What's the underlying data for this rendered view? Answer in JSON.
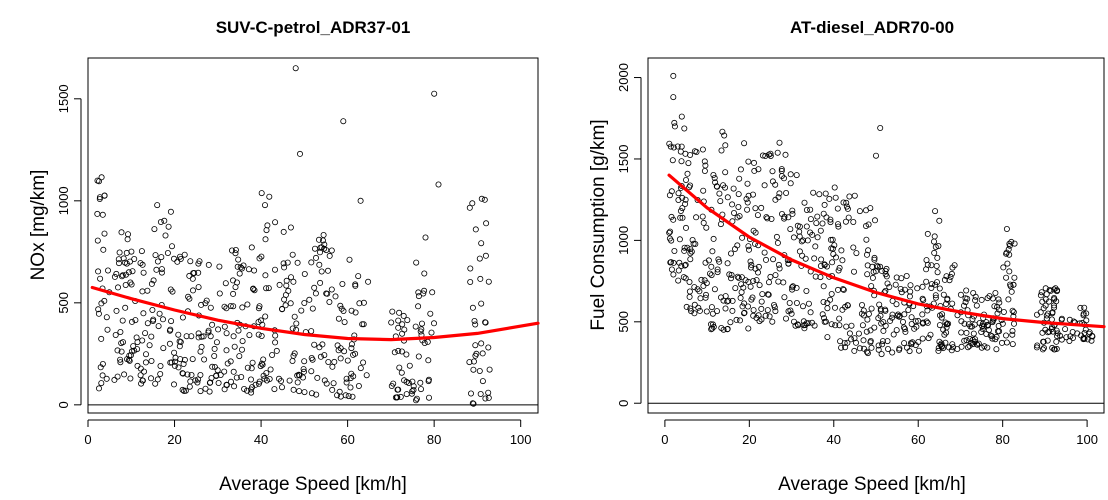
{
  "chart_data": [
    {
      "type": "scatter",
      "title": "SUV-C-petrol_ADR37-01",
      "xlabel": "Average Speed [km/h]",
      "ylabel": "NOx [mg/km]",
      "xlim": [
        0,
        104
      ],
      "ylim": [
        -40,
        1700
      ],
      "xticks": [
        0,
        20,
        40,
        60,
        80,
        100
      ],
      "yticks": [
        0,
        500,
        1000,
        1500
      ],
      "hline": 0,
      "fit_color": "#ff0000",
      "fit": {
        "x": [
          1,
          10,
          20,
          30,
          40,
          50,
          60,
          70,
          80,
          90,
          104
        ],
        "y": [
          575,
          520,
          465,
          415,
          375,
          345,
          325,
          320,
          330,
          350,
          400
        ]
      },
      "clusters": [
        {
          "x": [
            2,
            5
          ],
          "y": [
            80,
            1120
          ],
          "n": 30
        },
        {
          "x": [
            6,
            10
          ],
          "y": [
            120,
            850
          ],
          "n": 40
        },
        {
          "x": [
            10,
            15
          ],
          "y": [
            100,
            760
          ],
          "n": 38
        },
        {
          "x": [
            15,
            20
          ],
          "y": [
            100,
            1050
          ],
          "n": 38
        },
        {
          "x": [
            20,
            25
          ],
          "y": [
            60,
            760
          ],
          "n": 38
        },
        {
          "x": [
            25,
            30
          ],
          "y": [
            60,
            740
          ],
          "n": 38
        },
        {
          "x": [
            30,
            35
          ],
          "y": [
            50,
            760
          ],
          "n": 38
        },
        {
          "x": [
            35,
            40
          ],
          "y": [
            60,
            800
          ],
          "n": 38
        },
        {
          "x": [
            40,
            45
          ],
          "y": [
            60,
            1080
          ],
          "n": 36
        },
        {
          "x": [
            45,
            50
          ],
          "y": [
            60,
            900
          ],
          "n": 36
        },
        {
          "x": [
            50,
            55
          ],
          "y": [
            50,
            880
          ],
          "n": 34
        },
        {
          "x": [
            55,
            60
          ],
          "y": [
            40,
            760
          ],
          "n": 32
        },
        {
          "x": [
            60,
            65
          ],
          "y": [
            40,
            760
          ],
          "n": 28
        },
        {
          "x": [
            70,
            75
          ],
          "y": [
            20,
            460
          ],
          "n": 34
        },
        {
          "x": [
            75,
            80
          ],
          "y": [
            20,
            700
          ],
          "n": 30
        },
        {
          "x": [
            88,
            93
          ],
          "y": [
            0,
            1020
          ],
          "n": 36
        }
      ],
      "extra_points": {
        "x": [
          48,
          49,
          59,
          63,
          80,
          81,
          78,
          91,
          92
        ],
        "y": [
          1650,
          1230,
          1390,
          1000,
          1525,
          1080,
          820,
          1010,
          890
        ]
      }
    },
    {
      "type": "scatter",
      "title": "AT-diesel_ADR70-00",
      "xlabel": "Average Speed [km/h]",
      "ylabel": "Fuel Consumption [g/km]",
      "xlim": [
        -4,
        104
      ],
      "ylim": [
        -60,
        2120
      ],
      "xticks": [
        0,
        20,
        40,
        60,
        80,
        100
      ],
      "yticks": [
        0,
        500,
        1000,
        1500,
        2000
      ],
      "hline": 0,
      "fit_color": "#ff0000",
      "fit": {
        "x": [
          1,
          10,
          20,
          30,
          40,
          50,
          60,
          70,
          80,
          90,
          104
        ],
        "y": [
          1400,
          1200,
          1020,
          880,
          770,
          680,
          610,
          560,
          520,
          495,
          470
        ]
      },
      "clusters": [
        {
          "x": [
            1,
            5
          ],
          "y": [
            750,
            1750
          ],
          "n": 50
        },
        {
          "x": [
            5,
            10
          ],
          "y": [
            550,
            1600
          ],
          "n": 48
        },
        {
          "x": [
            10,
            15
          ],
          "y": [
            450,
            1680
          ],
          "n": 48
        },
        {
          "x": [
            15,
            20
          ],
          "y": [
            450,
            1600
          ],
          "n": 48
        },
        {
          "x": [
            20,
            25
          ],
          "y": [
            500,
            1600
          ],
          "n": 48
        },
        {
          "x": [
            25,
            30
          ],
          "y": [
            500,
            1600
          ],
          "n": 46
        },
        {
          "x": [
            30,
            35
          ],
          "y": [
            450,
            1450
          ],
          "n": 44
        },
        {
          "x": [
            35,
            40
          ],
          "y": [
            380,
            1300
          ],
          "n": 44
        },
        {
          "x": [
            40,
            45
          ],
          "y": [
            320,
            1400
          ],
          "n": 44
        },
        {
          "x": [
            45,
            50
          ],
          "y": [
            300,
            1200
          ],
          "n": 42
        },
        {
          "x": [
            50,
            55
          ],
          "y": [
            300,
            850
          ],
          "n": 40
        },
        {
          "x": [
            55,
            60
          ],
          "y": [
            320,
            800
          ],
          "n": 38
        },
        {
          "x": [
            60,
            65
          ],
          "y": [
            320,
            1050
          ],
          "n": 40
        },
        {
          "x": [
            65,
            70
          ],
          "y": [
            320,
            850
          ],
          "n": 40
        },
        {
          "x": [
            70,
            75
          ],
          "y": [
            330,
            700
          ],
          "n": 40
        },
        {
          "x": [
            75,
            80
          ],
          "y": [
            330,
            700
          ],
          "n": 40
        },
        {
          "x": [
            80,
            83
          ],
          "y": [
            350,
            1000
          ],
          "n": 30
        },
        {
          "x": [
            88,
            93
          ],
          "y": [
            330,
            720
          ],
          "n": 52
        },
        {
          "x": [
            93,
            100
          ],
          "y": [
            380,
            600
          ],
          "n": 30
        },
        {
          "x": [
            100,
            104
          ],
          "y": [
            380,
            450
          ],
          "n": 6
        }
      ],
      "extra_points": {
        "x": [
          2,
          2,
          4,
          51,
          50,
          64,
          65,
          81
        ],
        "y": [
          2010,
          1880,
          1760,
          1690,
          1520,
          1180,
          1120,
          1070
        ]
      }
    }
  ]
}
